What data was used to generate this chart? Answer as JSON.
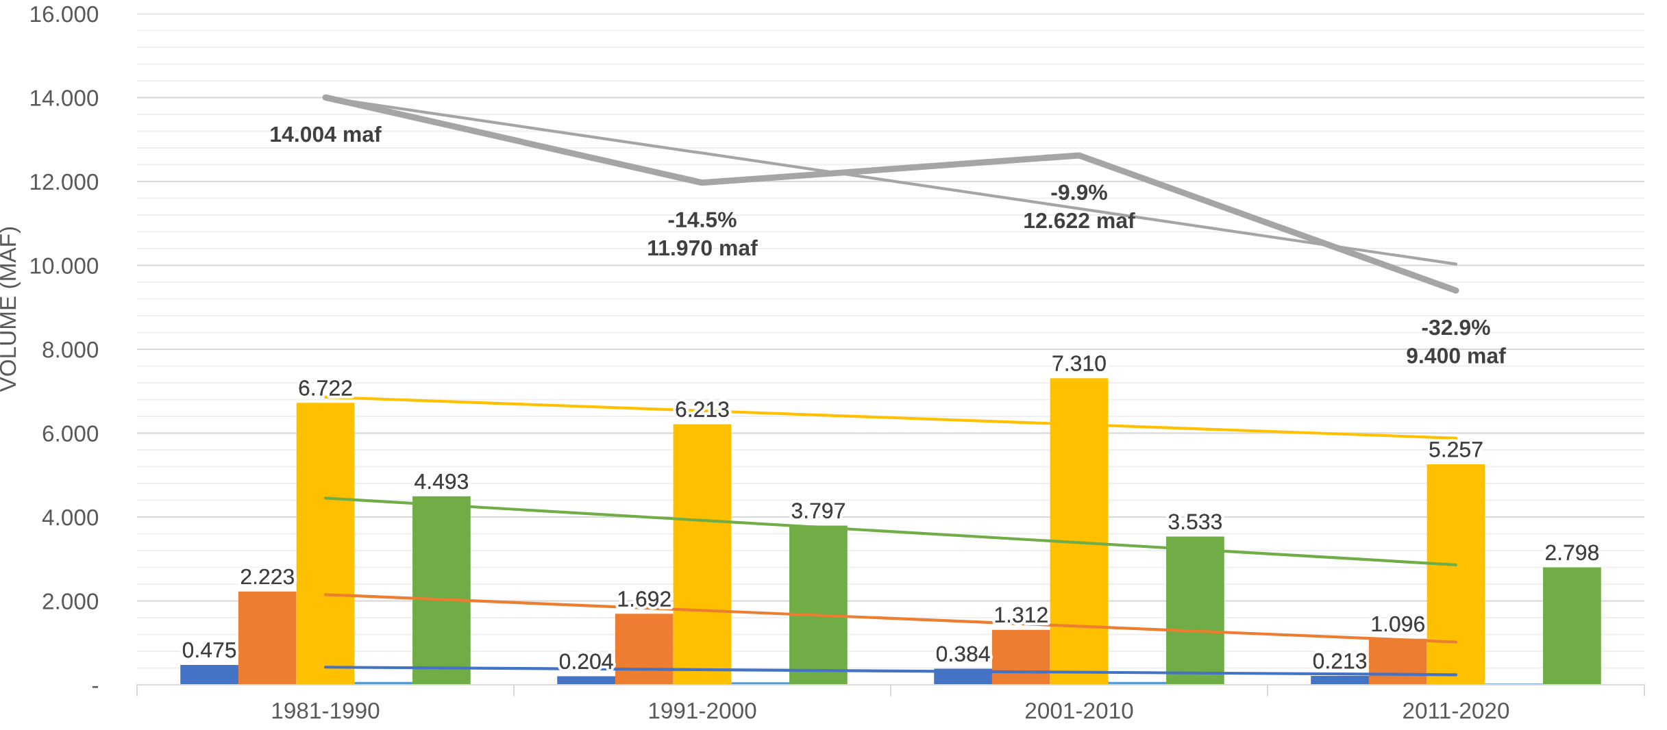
{
  "chart_data": {
    "type": "bar",
    "ylabel": "VOLUME (MAF)",
    "categories": [
      "1981-1990",
      "1991-2000",
      "2001-2010",
      "2011-2020"
    ],
    "series": [
      {
        "color": "#4472c4",
        "values": [
          0.475,
          0.204,
          0.384,
          0.213
        ],
        "value_labels": [
          "0.475",
          "0.204",
          "0.384",
          "0.213"
        ]
      },
      {
        "color": "#ed7d31",
        "values": [
          2.223,
          1.692,
          1.312,
          1.096
        ],
        "value_labels": [
          "2.223",
          "1.692",
          "1.312",
          "1.096"
        ]
      },
      {
        "color": "#ffc000",
        "values": [
          6.722,
          6.213,
          7.31,
          5.257
        ],
        "value_labels": [
          "6.722",
          "6.213",
          "7.310",
          "5.257"
        ]
      },
      {
        "color": "#5b9bd5",
        "values": [
          0.07,
          0.06,
          0.07,
          0.03
        ]
      },
      {
        "color": "#70ad47",
        "values": [
          4.493,
          3.797,
          3.533,
          2.798
        ],
        "value_labels": [
          "4.493",
          "3.797",
          "3.533",
          "2.798"
        ]
      },
      {
        "type": "line",
        "color": "#a5a5a5",
        "values": [
          14.004,
          11.97,
          12.622,
          9.4
        ],
        "value_labels": [
          "14.004 maf",
          "-14.5%\n11.970 maf",
          "-9.9%\n12.622 maf",
          "-32.9%\n9.400 maf"
        ]
      },
      {
        "type": "line",
        "color": "#a5a5a5",
        "x": [
          "1981-1990",
          "2011-2020"
        ],
        "values": [
          14.0,
          10.03
        ]
      },
      {
        "type": "line",
        "color": "#ffc000",
        "x": [
          "1981-1990",
          "2011-2020"
        ],
        "values": [
          6.86,
          5.88
        ]
      },
      {
        "type": "line",
        "color": "#70ad47",
        "x": [
          "1981-1990",
          "2011-2020"
        ],
        "values": [
          4.45,
          2.86
        ]
      },
      {
        "type": "line",
        "color": "#ed7d31",
        "x": [
          "1981-1990",
          "2011-2020"
        ],
        "values": [
          2.15,
          1.02
        ]
      },
      {
        "type": "line",
        "color": "#4472c4",
        "x": [
          "1981-1990",
          "2011-2020"
        ],
        "values": [
          0.42,
          0.24
        ]
      }
    ],
    "ylim": [
      0,
      16
    ],
    "yticks": [
      {
        "value": 0,
        "label": "-"
      },
      {
        "value": 2,
        "label": "2.000"
      },
      {
        "value": 4,
        "label": "4.000"
      },
      {
        "value": 6,
        "label": "6.000"
      },
      {
        "value": 8,
        "label": "8.000"
      },
      {
        "value": 10,
        "label": "10.000"
      },
      {
        "value": 12,
        "label": "12.000"
      },
      {
        "value": 14,
        "label": "14.000"
      },
      {
        "value": 16,
        "label": "16.000"
      }
    ],
    "grid": "y"
  }
}
